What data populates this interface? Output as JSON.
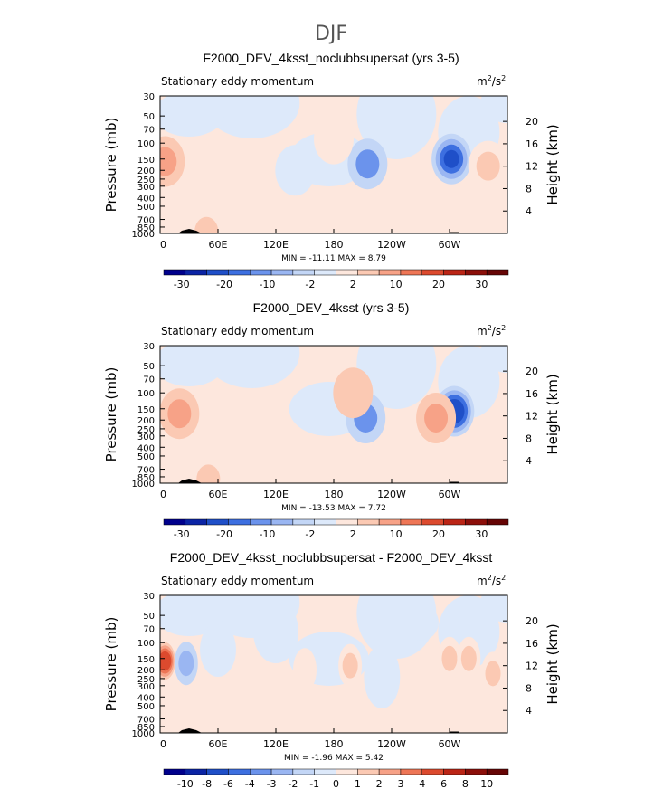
{
  "page_title": "DJF",
  "colors": {
    "palette": [
      "#00008c",
      "#0b24a5",
      "#1f4fc8",
      "#3d6fe0",
      "#6b93ec",
      "#9ab6f2",
      "#c3d6f6",
      "#dde9fa",
      "#fde7dd",
      "#fbc9b3",
      "#f7a287",
      "#ee7656",
      "#dc4a2e",
      "#bb2516",
      "#8c0f0a",
      "#660505"
    ],
    "mask": "#000000"
  },
  "chart_data": [
    {
      "type": "heatmap",
      "title": "F2000_DEV_4ksst_noclubbsupersat (yrs 3-5)",
      "subtitle_left": "Stationary eddy momentum",
      "units_main": "m",
      "units_sup1": "2",
      "units_mid": "/s",
      "units_sup2": "2",
      "ylabel": "Pressure (mb)",
      "ylabel_right": "Height (km)",
      "x_ticks": [
        "0",
        "60E",
        "120E",
        "180",
        "120W",
        "60W"
      ],
      "y_ticks": [
        "30",
        "50",
        "70",
        "100",
        "150",
        "200",
        "250",
        "300",
        "400",
        "500",
        "700",
        "850",
        "1000"
      ],
      "height_ticks": [
        "20",
        "16",
        "12",
        "8",
        "4"
      ],
      "stats": "MIN = -11.11   MAX =   8.79",
      "colorbar_labels": [
        "-30",
        "-20",
        "-10",
        "-2",
        "2",
        "10",
        "20",
        "30"
      ],
      "features": [
        {
          "lon": 5,
          "p": 160,
          "value": 6
        },
        {
          "lon": 215,
          "p": 170,
          "value": -6
        },
        {
          "lon": 302,
          "p": 150,
          "value": -11.1
        },
        {
          "lon": 340,
          "p": 180,
          "value": 4
        },
        {
          "lon": 48,
          "p": 950,
          "value": 4
        },
        {
          "lon": 140,
          "p": 200,
          "value": -1.5
        },
        {
          "lon": 180,
          "p": 90,
          "value": 1.5
        }
      ]
    },
    {
      "type": "heatmap",
      "title": "F2000_DEV_4ksst (yrs 3-5)",
      "subtitle_left": "Stationary eddy momentum",
      "units_main": "m",
      "units_sup1": "2",
      "units_mid": "/s",
      "units_sup2": "2",
      "ylabel": "Pressure (mb)",
      "ylabel_right": "Height (km)",
      "x_ticks": [
        "0",
        "60E",
        "120E",
        "180",
        "120W",
        "60W"
      ],
      "y_ticks": [
        "30",
        "50",
        "70",
        "100",
        "150",
        "200",
        "250",
        "300",
        "400",
        "500",
        "700",
        "850",
        "1000"
      ],
      "height_ticks": [
        "20",
        "16",
        "12",
        "8",
        "4"
      ],
      "stats": "MIN = -13.53   MAX =   7.72",
      "colorbar_labels": [
        "-30",
        "-20",
        "-10",
        "-2",
        "2",
        "10",
        "20",
        "30"
      ],
      "features": [
        {
          "lon": 20,
          "p": 170,
          "value": 6
        },
        {
          "lon": 213,
          "p": 190,
          "value": -6
        },
        {
          "lon": 305,
          "p": 160,
          "value": -13.5
        },
        {
          "lon": 286,
          "p": 190,
          "value": 5
        },
        {
          "lon": 50,
          "p": 900,
          "value": 4
        },
        {
          "lon": 200,
          "p": 100,
          "value": 3
        }
      ]
    },
    {
      "type": "heatmap",
      "title": "F2000_DEV_4ksst_noclubbsupersat - F2000_DEV_4ksst",
      "subtitle_left": "Stationary eddy momentum",
      "units_main": "m",
      "units_sup1": "2",
      "units_mid": "/s",
      "units_sup2": "2",
      "ylabel": "Pressure (mb)",
      "ylabel_right": "Height (km)",
      "x_ticks": [
        "0",
        "60E",
        "120E",
        "180",
        "120W",
        "60W"
      ],
      "y_ticks": [
        "30",
        "50",
        "70",
        "100",
        "150",
        "200",
        "250",
        "300",
        "400",
        "500",
        "700",
        "850",
        "1000"
      ],
      "height_ticks": [
        "20",
        "16",
        "12",
        "8",
        "4"
      ],
      "stats": "MIN =  -1.96   MAX =   5.42",
      "colorbar_labels": [
        "-10",
        "-8",
        "-6",
        "-4",
        "-3",
        "-2",
        "-1",
        "0",
        "1",
        "2",
        "3",
        "4",
        "6",
        "8",
        "10"
      ],
      "features": [
        {
          "lon": 5,
          "p": 160,
          "value": 5.4
        },
        {
          "lon": 27,
          "p": 170,
          "value": -2
        },
        {
          "lon": 197,
          "p": 180,
          "value": 2
        },
        {
          "lon": 300,
          "p": 150,
          "value": 2
        },
        {
          "lon": 320,
          "p": 150,
          "value": 2
        },
        {
          "lon": 345,
          "p": 220,
          "value": 2
        },
        {
          "lon": 150,
          "p": 200,
          "value": 1
        }
      ]
    }
  ]
}
